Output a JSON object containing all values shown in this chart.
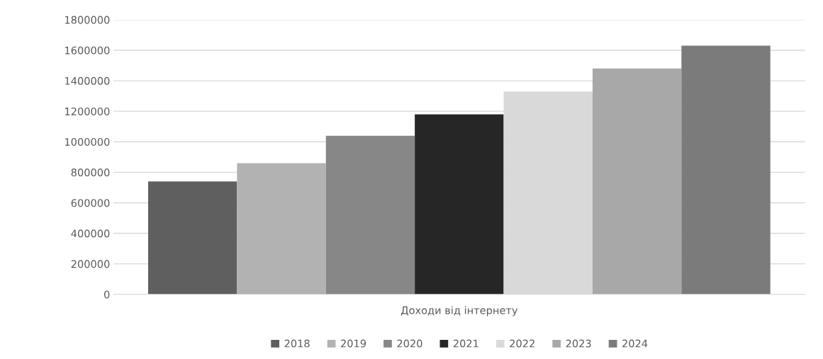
{
  "chart_data": {
    "type": "bar",
    "categories": [
      "Доходи від інтернету"
    ],
    "series": [
      {
        "name": "2018",
        "color": "#5f5f5f",
        "values": [
          740000
        ]
      },
      {
        "name": "2019",
        "color": "#b2b2b2",
        "values": [
          860000
        ]
      },
      {
        "name": "2020",
        "color": "#878787",
        "values": [
          1040000
        ]
      },
      {
        "name": "2021",
        "color": "#262626",
        "values": [
          1180000
        ]
      },
      {
        "name": "2022",
        "color": "#d9d9d9",
        "values": [
          1330000
        ]
      },
      {
        "name": "2023",
        "color": "#a8a8a8",
        "values": [
          1480000
        ]
      },
      {
        "name": "2024",
        "color": "#7b7b7b",
        "values": [
          1630000
        ]
      }
    ],
    "ylim": [
      0,
      1800000
    ],
    "yticks": [
      0,
      200000,
      400000,
      600000,
      800000,
      1000000,
      1200000,
      1400000,
      1600000,
      1800000
    ],
    "grid": "y",
    "legend": "bottom"
  }
}
